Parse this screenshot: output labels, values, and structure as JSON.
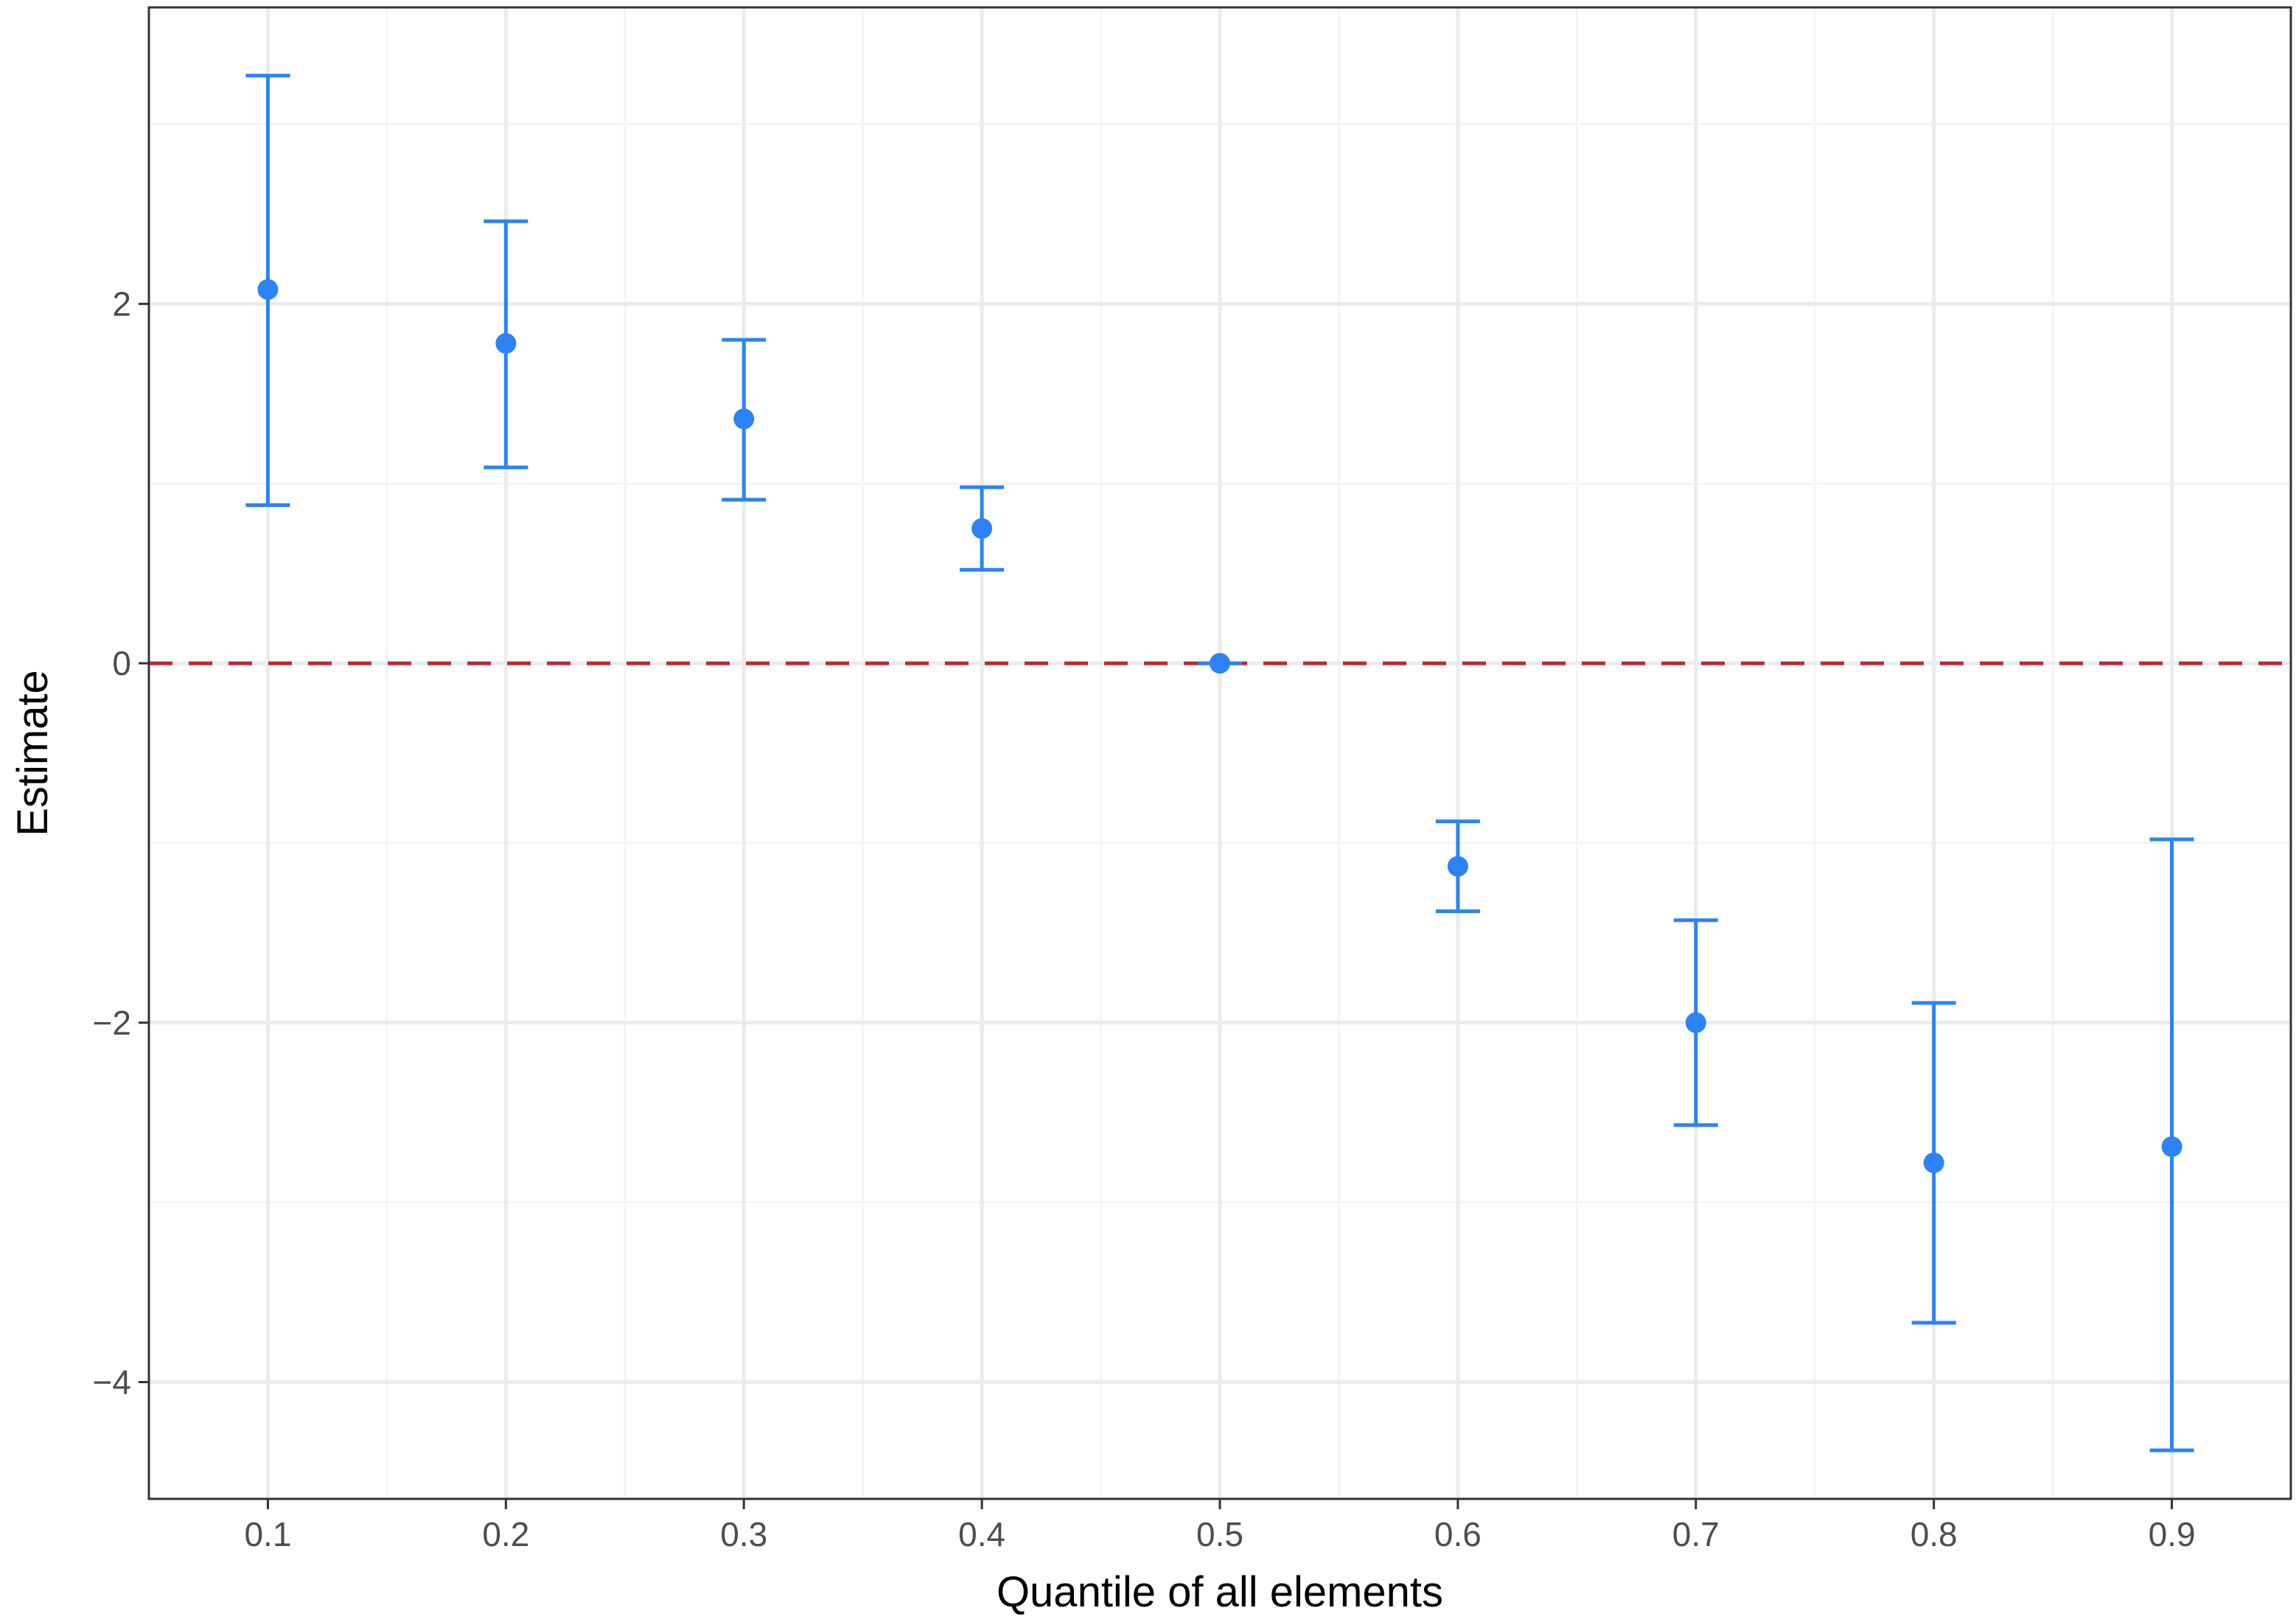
{
  "chart_data": {
    "type": "scatter",
    "title": "",
    "xlabel": "Quantile of all elements",
    "ylabel": "Estimate",
    "x": [
      0.1,
      0.2,
      0.3,
      0.4,
      0.5,
      0.6,
      0.7,
      0.8,
      0.9
    ],
    "x_tick_labels": [
      "0.1",
      "0.2",
      "0.3",
      "0.4",
      "0.5",
      "0.6",
      "0.7",
      "0.8",
      "0.9"
    ],
    "series": [
      {
        "estimate": [
          2.08,
          1.78,
          1.36,
          0.75,
          0.0,
          -1.13,
          -2.0,
          -2.78,
          -2.69
        ],
        "ci_low": [
          0.88,
          1.09,
          0.91,
          0.52,
          0.0,
          -1.38,
          -2.57,
          -3.67,
          -4.38
        ],
        "ci_high": [
          3.27,
          2.46,
          1.8,
          0.98,
          0.0,
          -0.88,
          -1.43,
          -1.89,
          -0.98
        ]
      }
    ],
    "y_ticks": [
      -4,
      -2,
      0,
      2
    ],
    "y_tick_labels": [
      "−4",
      "−2",
      "0",
      "2"
    ],
    "xlim": [
      0.05,
      0.95
    ],
    "ylim": [
      -4.65,
      3.65
    ],
    "grid": true,
    "legend": "none",
    "reference_line": {
      "y": 0,
      "style": "dashed",
      "color": "#c0282e"
    },
    "colors": {
      "points": "#2b83f6",
      "reference": "#c0282e",
      "panel_border": "#333333",
      "grid": "#ebebeb"
    }
  }
}
